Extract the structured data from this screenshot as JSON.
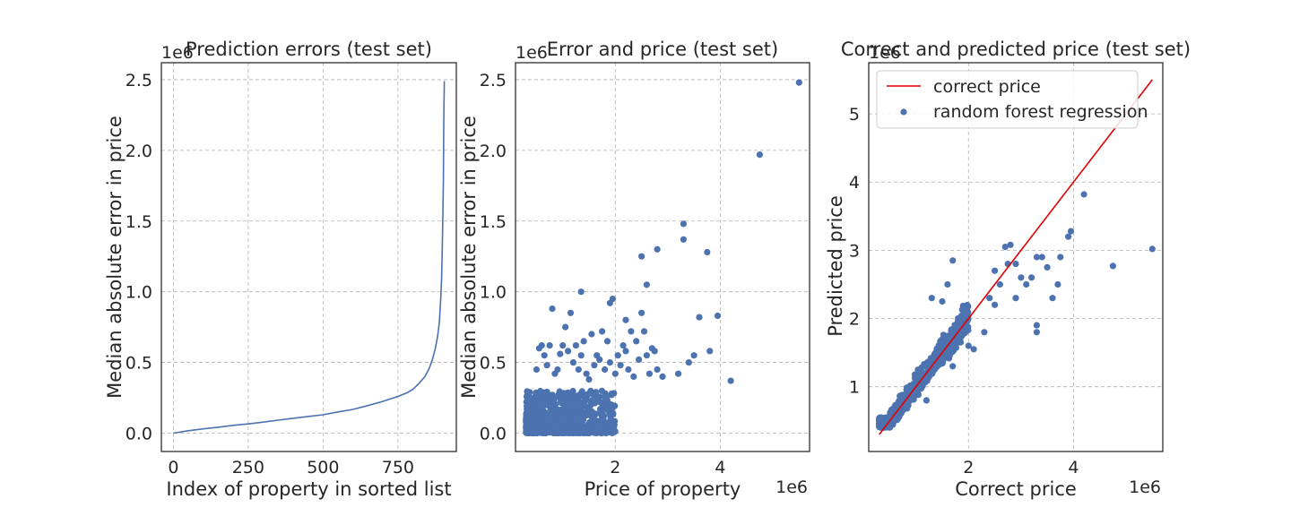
{
  "chart_data": [
    {
      "type": "line",
      "title": "Prediction errors (test set)",
      "xlabel": "Index of property in sorted list",
      "ylabel": "Median absolute error in price",
      "y_offset_text": "1e6",
      "xlim": [
        -40,
        945
      ],
      "ylim": [
        -0.13,
        2.62
      ],
      "xticks": [
        0,
        250,
        500,
        750
      ],
      "xtick_labels": [
        "0",
        "250",
        "500",
        "750"
      ],
      "yticks": [
        0.0,
        0.5,
        1.0,
        1.5,
        2.0,
        2.5
      ],
      "ytick_labels": [
        "0.0",
        "0.5",
        "1.0",
        "1.5",
        "2.0",
        "2.5"
      ],
      "grid": true,
      "color": "#4c72b0",
      "series": [
        {
          "x": [
            0,
            50,
            100,
            150,
            200,
            250,
            300,
            350,
            400,
            450,
            500,
            550,
            600,
            650,
            700,
            750,
            780,
            800,
            820,
            840,
            855,
            865,
            875,
            882,
            888,
            893,
            896,
            898,
            900,
            902,
            903,
            905
          ],
          "y": [
            0.0,
            0.017,
            0.03,
            0.042,
            0.055,
            0.065,
            0.078,
            0.092,
            0.105,
            0.118,
            0.13,
            0.15,
            0.168,
            0.195,
            0.225,
            0.26,
            0.285,
            0.31,
            0.35,
            0.4,
            0.46,
            0.52,
            0.6,
            0.68,
            0.78,
            0.95,
            1.1,
            1.3,
            1.55,
            1.8,
            2.2,
            2.49
          ]
        }
      ]
    },
    {
      "type": "scatter",
      "title": "Error and price (test set)",
      "xlabel": "Price of property",
      "ylabel": "Median absolute error in price",
      "x_offset_text": "1e6",
      "y_offset_text": "1e6",
      "xlim": [
        0.1,
        5.7
      ],
      "ylim": [
        -0.13,
        2.62
      ],
      "xticks": [
        2,
        4
      ],
      "xtick_labels": [
        "2",
        "4"
      ],
      "yticks": [
        0.0,
        0.5,
        1.0,
        1.5,
        2.0,
        2.5
      ],
      "ytick_labels": [
        "0.0",
        "0.5",
        "1.0",
        "1.5",
        "2.0",
        "2.5"
      ],
      "grid": true,
      "color": "#4c72b0",
      "cluster": {
        "count": 700,
        "x_range": [
          0.3,
          2.0
        ],
        "y_range": [
          0.0,
          0.3
        ]
      },
      "points": [
        [
          0.5,
          0.45
        ],
        [
          0.55,
          0.6
        ],
        [
          0.6,
          0.62
        ],
        [
          0.65,
          0.55
        ],
        [
          0.7,
          0.48
        ],
        [
          0.75,
          0.62
        ],
        [
          0.8,
          0.88
        ],
        [
          0.85,
          0.42
        ],
        [
          0.9,
          0.45
        ],
        [
          0.95,
          0.56
        ],
        [
          1.0,
          0.62
        ],
        [
          1.05,
          0.75
        ],
        [
          1.1,
          0.58
        ],
        [
          1.15,
          0.85
        ],
        [
          1.2,
          0.5
        ],
        [
          1.25,
          0.62
        ],
        [
          1.3,
          0.45
        ],
        [
          1.35,
          0.55
        ],
        [
          1.4,
          0.65
        ],
        [
          1.45,
          0.42
        ],
        [
          1.5,
          0.38
        ],
        [
          1.55,
          0.7
        ],
        [
          1.6,
          0.48
        ],
        [
          1.65,
          0.55
        ],
        [
          1.7,
          0.52
        ],
        [
          1.75,
          0.72
        ],
        [
          1.8,
          0.45
        ],
        [
          1.85,
          0.65
        ],
        [
          1.9,
          0.5
        ],
        [
          1.95,
          0.95
        ],
        [
          2.0,
          0.42
        ],
        [
          2.05,
          0.55
        ],
        [
          2.1,
          0.48
        ],
        [
          2.15,
          0.62
        ],
        [
          2.2,
          0.58
        ],
        [
          2.25,
          0.45
        ],
        [
          2.3,
          0.72
        ],
        [
          2.35,
          0.4
        ],
        [
          2.4,
          0.65
        ],
        [
          2.45,
          0.52
        ],
        [
          2.5,
          0.85
        ],
        [
          2.55,
          0.72
        ],
        [
          2.6,
          0.55
        ],
        [
          2.65,
          0.42
        ],
        [
          2.7,
          0.6
        ],
        [
          2.75,
          0.58
        ],
        [
          2.8,
          0.45
        ],
        [
          2.9,
          0.4
        ],
        [
          1.35,
          1.0
        ],
        [
          1.9,
          0.92
        ],
        [
          2.2,
          0.8
        ],
        [
          2.5,
          1.25
        ],
        [
          2.6,
          1.05
        ],
        [
          2.8,
          1.3
        ],
        [
          3.2,
          0.42
        ],
        [
          3.3,
          1.48
        ],
        [
          3.3,
          1.37
        ],
        [
          3.4,
          0.5
        ],
        [
          3.5,
          0.55
        ],
        [
          3.6,
          0.82
        ],
        [
          3.75,
          1.28
        ],
        [
          3.8,
          0.58
        ],
        [
          3.95,
          0.83
        ],
        [
          4.2,
          0.37
        ],
        [
          4.75,
          1.97
        ],
        [
          5.5,
          2.48
        ]
      ]
    },
    {
      "type": "scatter",
      "title": "Correct and predicted price (test set)",
      "xlabel": "Correct price",
      "ylabel": "Predicted price",
      "x_offset_text": "1e6",
      "y_offset_text": "1e6",
      "xlim": [
        0.1,
        5.7
      ],
      "ylim": [
        0.05,
        5.75
      ],
      "xticks": [
        2,
        4
      ],
      "xtick_labels": [
        "2",
        "4"
      ],
      "yticks": [
        1,
        2,
        3,
        4,
        5
      ],
      "ytick_labels": [
        "1",
        "2",
        "3",
        "4",
        "5"
      ],
      "grid": true,
      "legend_position": "top-left",
      "legend": [
        {
          "label": "correct price",
          "kind": "line",
          "color": "#e00000"
        },
        {
          "label": "random forest regression",
          "kind": "point",
          "color": "#4c72b0"
        }
      ],
      "reference_line": {
        "x": [
          0.3,
          5.5
        ],
        "y": [
          0.3,
          5.5
        ],
        "color": "#e00000"
      },
      "cluster": {
        "count": 700,
        "x_range": [
          0.3,
          2.0
        ],
        "slope": 1.0,
        "spread": 0.3
      },
      "points": [
        [
          2.3,
          1.8
        ],
        [
          2.4,
          2.3
        ],
        [
          2.5,
          2.2
        ],
        [
          2.5,
          2.7
        ],
        [
          2.6,
          2.5
        ],
        [
          2.7,
          3.05
        ],
        [
          2.75,
          2.8
        ],
        [
          2.8,
          3.08
        ],
        [
          2.9,
          2.8
        ],
        [
          2.9,
          2.3
        ],
        [
          3.0,
          2.6
        ],
        [
          3.1,
          2.5
        ],
        [
          3.2,
          2.6
        ],
        [
          3.3,
          2.9
        ],
        [
          3.3,
          1.9
        ],
        [
          3.3,
          1.8
        ],
        [
          3.4,
          2.9
        ],
        [
          3.5,
          2.75
        ],
        [
          3.6,
          2.3
        ],
        [
          3.7,
          2.5
        ],
        [
          3.75,
          2.9
        ],
        [
          3.9,
          3.2
        ],
        [
          3.95,
          3.28
        ],
        [
          4.2,
          3.82
        ],
        [
          4.75,
          2.77
        ],
        [
          5.5,
          3.02
        ],
        [
          1.3,
          2.3
        ],
        [
          1.5,
          2.25
        ],
        [
          1.6,
          2.5
        ],
        [
          1.7,
          2.85
        ],
        [
          1.8,
          2.0
        ],
        [
          2.0,
          1.6
        ],
        [
          2.1,
          1.55
        ],
        [
          1.7,
          1.3
        ],
        [
          1.2,
          0.8
        ]
      ]
    }
  ]
}
